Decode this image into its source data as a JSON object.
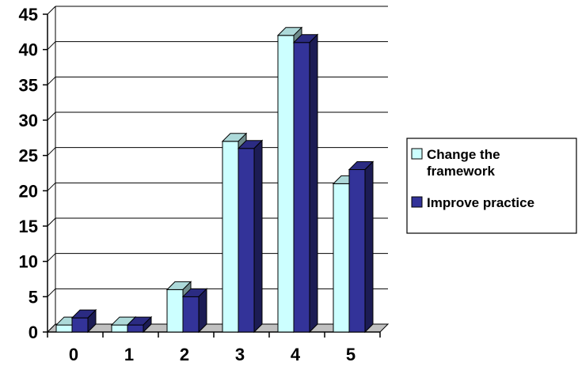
{
  "chart_data": {
    "type": "bar",
    "categories": [
      "0",
      "1",
      "2",
      "3",
      "4",
      "5"
    ],
    "series": [
      {
        "name": "Change the framework",
        "name_lines": [
          "Change the",
          "framework"
        ],
        "values": [
          1,
          1,
          6,
          27,
          42,
          21
        ],
        "color": "#CCFFFF"
      },
      {
        "name": "Improve practice",
        "name_lines": [
          "Improve practice"
        ],
        "values": [
          2,
          1,
          5,
          26,
          41,
          23
        ],
        "color": "#333399"
      }
    ],
    "y_ticks": [
      "0",
      "5",
      "10",
      "15",
      "20",
      "25",
      "30",
      "35",
      "40",
      "45"
    ],
    "ylim": [
      0,
      45
    ],
    "title": "",
    "xlabel": "",
    "ylabel": "",
    "grid": true,
    "legend_position": "right",
    "three_d": true
  }
}
